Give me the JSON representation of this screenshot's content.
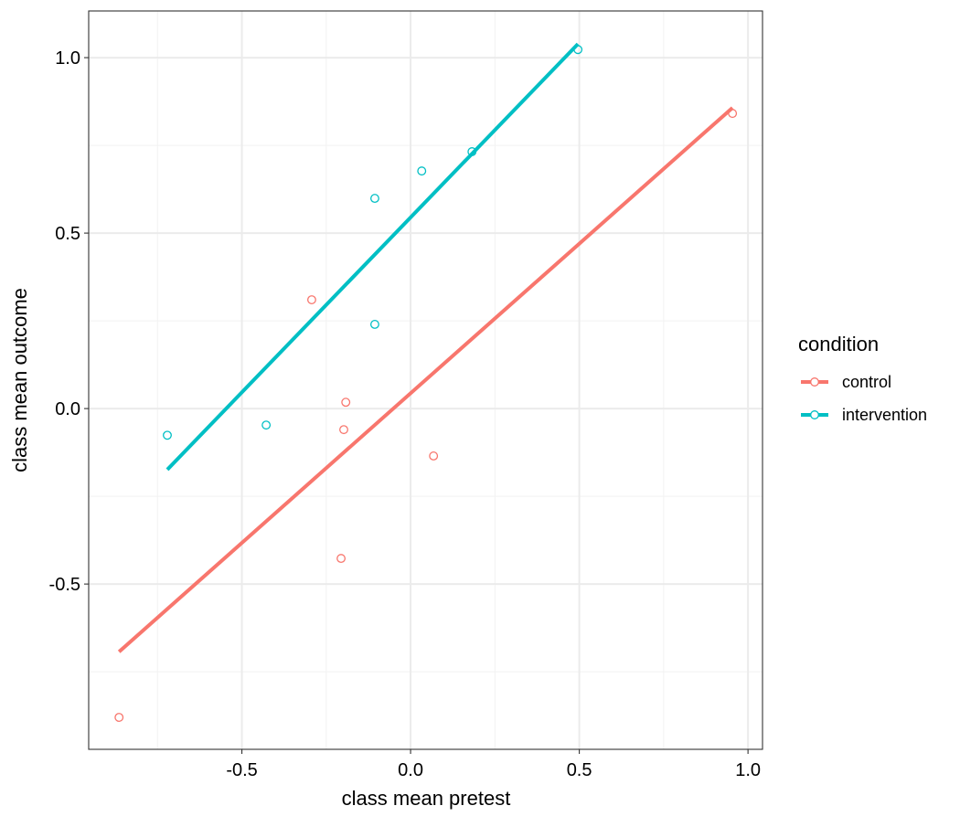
{
  "chart_data": {
    "type": "scatter",
    "title": "",
    "xlabel": "class mean pretest",
    "ylabel": "class mean outcome",
    "xlim": [
      -0.954,
      1.043
    ],
    "ylim": [
      -0.971,
      1.133
    ],
    "xticks": [
      -0.5,
      0.0,
      0.5,
      1.0
    ],
    "xtick_labels": [
      "-0.5",
      "0.0",
      "0.5",
      "1.0"
    ],
    "yticks": [
      -0.5,
      0.0,
      0.5,
      1.0
    ],
    "ytick_labels": [
      "-0.5",
      "0.0",
      "0.5",
      "1.0"
    ],
    "minor_ticks": [
      -0.75,
      -0.25,
      0.25,
      0.75
    ],
    "grid": true,
    "legend": {
      "title": "condition",
      "placement": "right"
    },
    "series": [
      {
        "name": "control",
        "color": "#F8766D",
        "points": [
          [
            -0.864,
            -0.88
          ],
          [
            -0.293,
            0.31
          ],
          [
            -0.192,
            0.018
          ],
          [
            -0.198,
            -0.06
          ],
          [
            -0.206,
            -0.427
          ],
          [
            0.068,
            -0.135
          ],
          [
            0.954,
            0.841
          ]
        ],
        "fit_line": [
          [
            -0.864,
            -0.693
          ],
          [
            0.954,
            0.857
          ]
        ]
      },
      {
        "name": "intervention",
        "color": "#00BFC4",
        "points": [
          [
            -0.721,
            -0.076
          ],
          [
            -0.428,
            -0.047
          ],
          [
            -0.106,
            0.599
          ],
          [
            -0.106,
            0.24
          ],
          [
            0.033,
            0.677
          ],
          [
            0.182,
            0.732
          ],
          [
            0.496,
            1.023
          ]
        ],
        "fit_line": [
          [
            -0.721,
            -0.174
          ],
          [
            0.496,
            1.039
          ]
        ]
      }
    ]
  }
}
